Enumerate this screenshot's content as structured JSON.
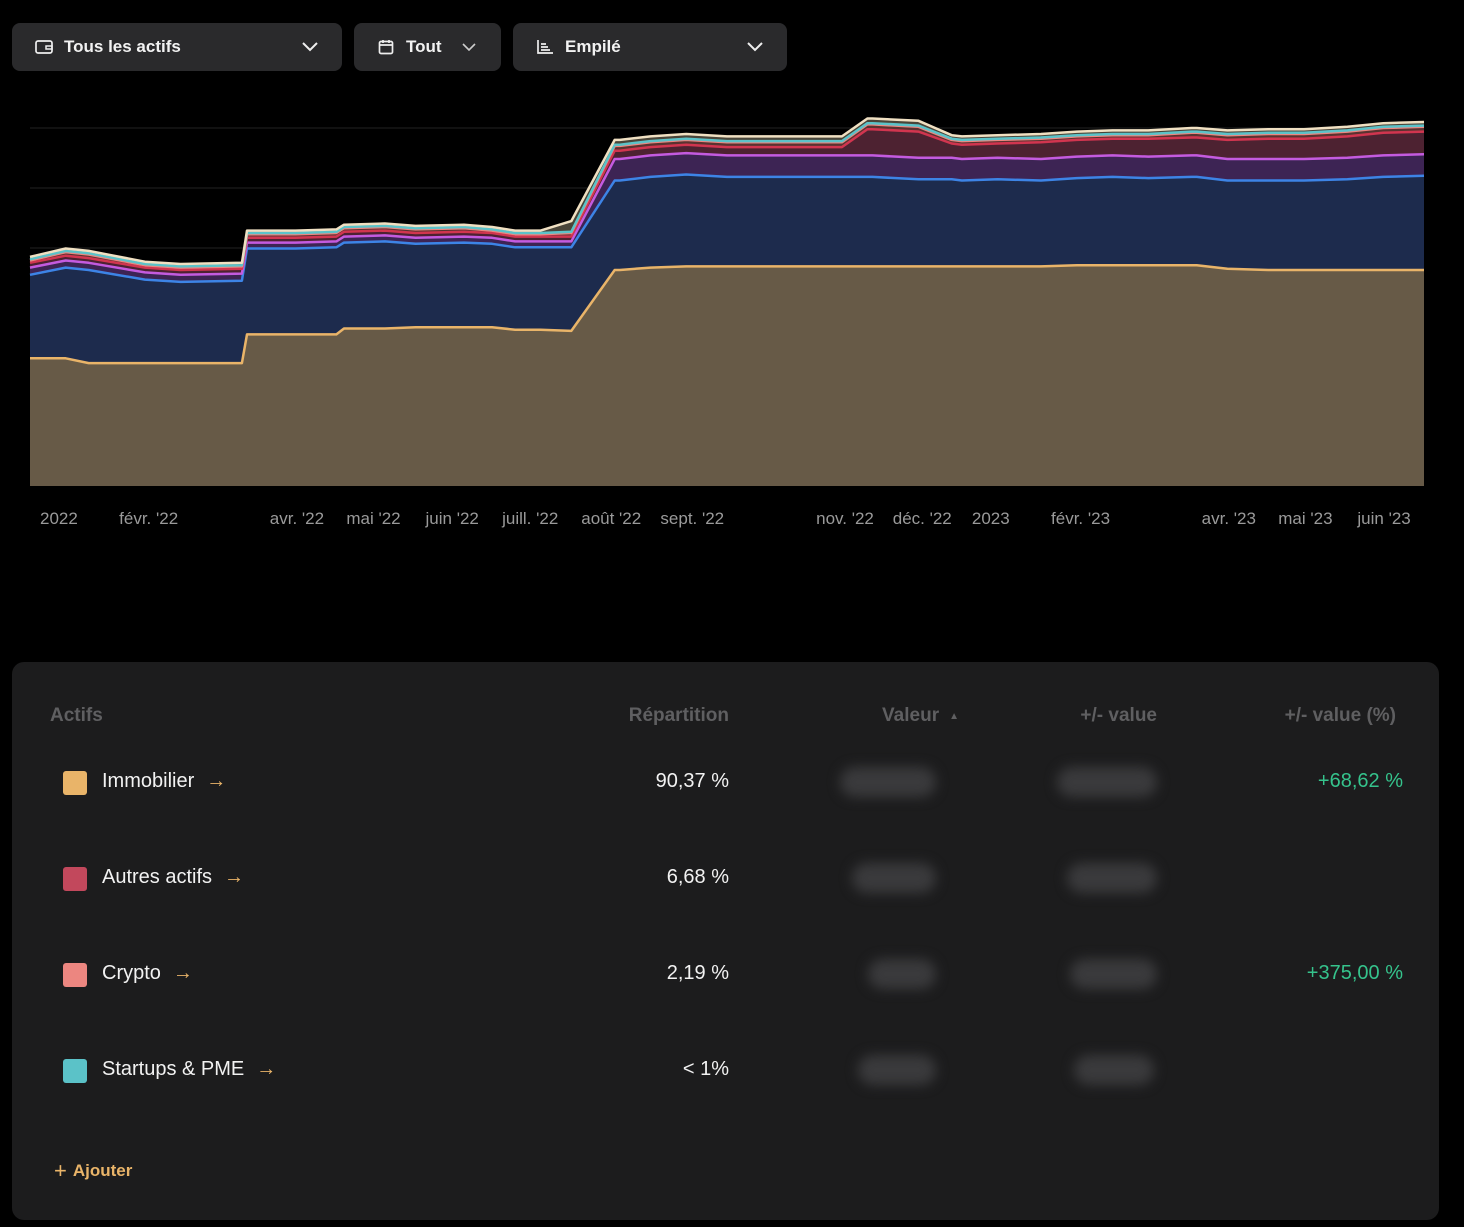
{
  "toolbar": {
    "assets_label": "Tous les actifs",
    "assets_icon": "wallet-icon",
    "period_label": "Tout",
    "period_icon": "calendar-icon",
    "mode_label": "Empilé",
    "mode_icon": "stacked-chart-icon"
  },
  "chart_data": {
    "type": "area",
    "stacked": true,
    "x_tick_labels": [
      "2022",
      "févr. '22",
      "avr. '22",
      "mai '22",
      "juin '22",
      "juill. '22",
      "août '22",
      "sept. '22",
      "nov. '22",
      "déc. '22",
      "2023",
      "févr. '23",
      "avr. '23",
      "mai '23",
      "juin '23"
    ],
    "grid": true,
    "x": [
      "2022-01-01",
      "2022-01-15",
      "2022-01-24",
      "2022-02-15",
      "2022-03-01",
      "2022-03-25",
      "2022-03-27",
      "2022-04-15",
      "2022-05-01",
      "2022-05-04",
      "2022-05-20",
      "2022-06-01",
      "2022-06-20",
      "2022-07-01",
      "2022-07-10",
      "2022-07-20",
      "2022-08-01",
      "2022-08-18",
      "2022-08-20",
      "2022-09-01",
      "2022-09-15",
      "2022-10-01",
      "2022-10-15",
      "2022-11-01",
      "2022-11-15",
      "2022-11-25",
      "2022-11-27",
      "2022-12-15",
      "2022-12-28",
      "2023-01-01",
      "2023-01-15",
      "2023-02-01",
      "2023-02-15",
      "2023-03-01",
      "2023-03-15",
      "2023-04-01",
      "2023-04-03",
      "2023-04-15",
      "2023-05-01",
      "2023-05-15",
      "2023-06-01",
      "2023-06-15",
      "2023-07-01"
    ],
    "series": [
      {
        "color": "#e9b469",
        "fill": "#675a47",
        "values": [
          107,
          107,
          103,
          103,
          103,
          103,
          127,
          127,
          127,
          132,
          132,
          133,
          133,
          133,
          131,
          131,
          130,
          181,
          181,
          183,
          184,
          184,
          184,
          184,
          184,
          184,
          184,
          184,
          184,
          184,
          184,
          184,
          185,
          185,
          185,
          185,
          185,
          182,
          181,
          181,
          181,
          181,
          181
        ]
      },
      {
        "color": "#3d84e6",
        "fill": "#1d2b4d",
        "values": [
          70,
          76,
          78,
          70,
          68,
          69,
          72,
          72,
          73,
          72,
          73,
          70,
          71,
          70,
          69,
          69,
          70,
          75,
          75,
          76,
          77,
          75,
          75,
          75,
          75,
          75,
          75,
          73,
          73,
          72,
          73,
          72,
          73,
          74,
          73,
          74,
          74,
          74,
          75,
          75,
          76,
          78,
          79
        ]
      },
      {
        "color": "#c45bdf",
        "fill": "#3d2454",
        "values": [
          6,
          6,
          6,
          6,
          6,
          6,
          5,
          5,
          5,
          5,
          5,
          5,
          5,
          5,
          5,
          5,
          5,
          18,
          18,
          18,
          18,
          18,
          18,
          18,
          18,
          18,
          18,
          18,
          18,
          18,
          18,
          18,
          18,
          18,
          18,
          18,
          18,
          18,
          18,
          18,
          18,
          18,
          18
        ]
      },
      {
        "color": "#d1354f",
        "fill": "#4d2231",
        "values": [
          4,
          4,
          4,
          4,
          4,
          4,
          4,
          4,
          4,
          4,
          4,
          4,
          4,
          4,
          4,
          4,
          4,
          7,
          7,
          7,
          7,
          7,
          7,
          7,
          7,
          22,
          22,
          22,
          12,
          12,
          12,
          14,
          14,
          14,
          15,
          15,
          15,
          16,
          17,
          17,
          18,
          19,
          19
        ]
      },
      {
        "color": "#ec8680",
        "fill": "#5a3330",
        "values": [
          2,
          3,
          3,
          2,
          2,
          2,
          3,
          3,
          3,
          3,
          3,
          3,
          3,
          2,
          2,
          2,
          3,
          4,
          4,
          4,
          4,
          4,
          4,
          4,
          4,
          4,
          4,
          4,
          3,
          3,
          3,
          3,
          3,
          3,
          3,
          4,
          4,
          4,
          4,
          4,
          4,
          4,
          4
        ]
      },
      {
        "color": "#5bc2c8",
        "fill": "#2a4c4d",
        "values": [
          1,
          1,
          1,
          1,
          1,
          1,
          1,
          1,
          1,
          1,
          1,
          1,
          1,
          1,
          1,
          1,
          1,
          1,
          1,
          1,
          1,
          1,
          1,
          1,
          1,
          1,
          1,
          1,
          1,
          1,
          1,
          1,
          1,
          1,
          1,
          1,
          1,
          1,
          1,
          1,
          1,
          1,
          1
        ]
      },
      {
        "color": "#f0e0c2",
        "fill": "#4a4538",
        "values": [
          2,
          2,
          2,
          2,
          2,
          2,
          2,
          2,
          2,
          2,
          2,
          2,
          2,
          2,
          2,
          2,
          9,
          4,
          4,
          4,
          4,
          4,
          4,
          4,
          4,
          4,
          4,
          4,
          3,
          3,
          3,
          3,
          3,
          3,
          3,
          3,
          3,
          3,
          3,
          3,
          3,
          3,
          3
        ]
      }
    ]
  },
  "table": {
    "headers": {
      "assets": "Actifs",
      "distribution": "Répartition",
      "value": "Valeur",
      "gain": "+/- value",
      "gain_pct": "+/- value (%)"
    },
    "rows": [
      {
        "name": "Immobilier",
        "color": "#e9b469",
        "pct": "90,37 %",
        "gain_pct": "+68,62 %"
      },
      {
        "name": "Autres actifs",
        "color": "#c2485c",
        "pct": "6,68 %",
        "gain_pct": ""
      },
      {
        "name": "Crypto",
        "color": "#ec8680",
        "pct": "2,19 %",
        "gain_pct": "+375,00 %"
      },
      {
        "name": "Startups & PME",
        "color": "#5bc2c8",
        "pct": "< 1%",
        "gain_pct": ""
      }
    ],
    "add_label": "Ajouter",
    "arrow_glyph": "→",
    "sort_glyph": "▲"
  }
}
